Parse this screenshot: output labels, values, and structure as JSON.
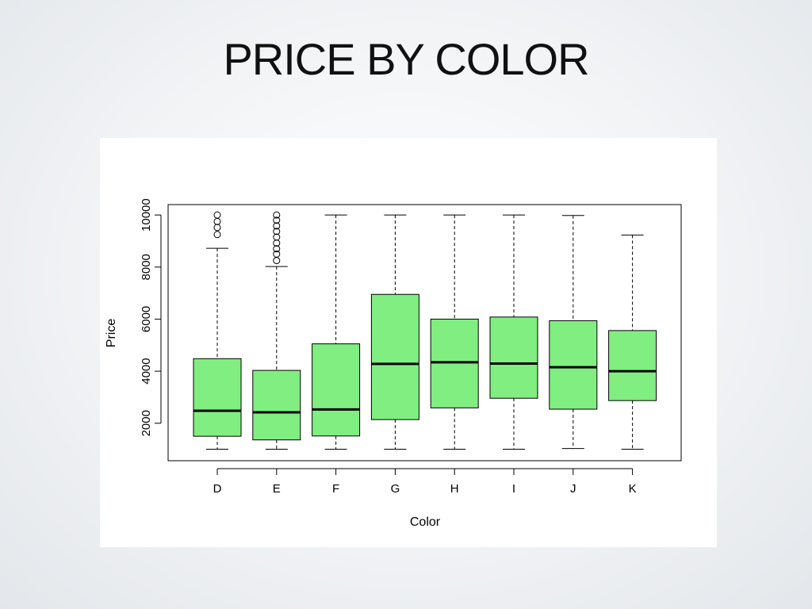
{
  "slide": {
    "title": "PRICE BY COLOR"
  },
  "colors": {
    "box_fill": "#80ee80",
    "stroke": "#000000"
  },
  "chart_data": {
    "type": "boxplot",
    "title": "",
    "xlabel": "Color",
    "ylabel": "Price",
    "ylim": [
      560,
      10400
    ],
    "yticks": [
      2000,
      4000,
      6000,
      8000,
      10000
    ],
    "grid": false,
    "categories": [
      "D",
      "E",
      "F",
      "G",
      "H",
      "I",
      "J",
      "K"
    ],
    "boxes": [
      {
        "category": "D",
        "whisker_low": 1000,
        "q1": 1500,
        "median": 2480,
        "q3": 4480,
        "whisker_high": 8720,
        "outliers": [
          9250,
          9520,
          9750,
          10000
        ]
      },
      {
        "category": "E",
        "whisker_low": 1000,
        "q1": 1360,
        "median": 2420,
        "q3": 4030,
        "whisker_high": 8020,
        "outliers": [
          8250,
          8500,
          8700,
          8920,
          9150,
          9370,
          9580,
          9800,
          10000
        ]
      },
      {
        "category": "F",
        "whisker_low": 1000,
        "q1": 1510,
        "median": 2530,
        "q3": 5050,
        "whisker_high": 10000,
        "outliers": []
      },
      {
        "category": "G",
        "whisker_low": 1000,
        "q1": 2140,
        "median": 4280,
        "q3": 6950,
        "whisker_high": 10000,
        "outliers": []
      },
      {
        "category": "H",
        "whisker_low": 1000,
        "q1": 2590,
        "median": 4340,
        "q3": 6000,
        "whisker_high": 10000,
        "outliers": []
      },
      {
        "category": "I",
        "whisker_low": 1000,
        "q1": 2960,
        "median": 4290,
        "q3": 6080,
        "whisker_high": 10000,
        "outliers": []
      },
      {
        "category": "J",
        "whisker_low": 1030,
        "q1": 2540,
        "median": 4150,
        "q3": 5940,
        "whisker_high": 9980,
        "outliers": []
      },
      {
        "category": "K",
        "whisker_low": 1000,
        "q1": 2870,
        "median": 4000,
        "q3": 5560,
        "whisker_high": 9230,
        "outliers": []
      }
    ]
  }
}
